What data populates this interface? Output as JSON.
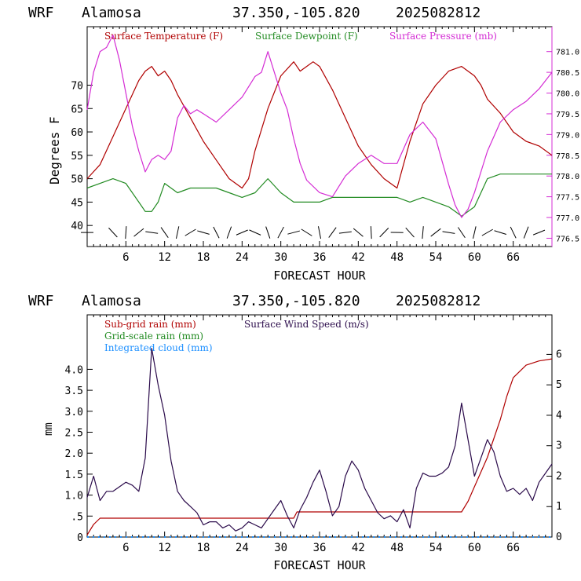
{
  "top": {
    "header": {
      "model": "WRF",
      "station": "Alamosa",
      "coords": "37.350,-105.820",
      "run": "2025082812"
    },
    "legend": [
      {
        "text": "Surface Temperature (F)",
        "color": "#b00000"
      },
      {
        "text": "Surface Dewpoint (F)",
        "color": "#228b22"
      },
      {
        "text": "Surface Pressure (mb)",
        "color": "#d42cd4"
      }
    ],
    "ylabel": "Degrees F",
    "xlabel": "FORECAST HOUR"
  },
  "bottom": {
    "header": {
      "model": "WRF",
      "station": "Alamosa",
      "coords": "37.350,-105.820",
      "run": "2025082812"
    },
    "legend": [
      {
        "text": "Sub-grid rain (mm)",
        "color": "#b00000"
      },
      {
        "text": "Grid-scale rain (mm)",
        "color": "#228b22"
      },
      {
        "text": "Integrated cloud (mm)",
        "color": "#1e90ff"
      },
      {
        "text": "Surface Wind Speed (m/s)",
        "color": "#2a0a4a"
      }
    ],
    "ylabel": "mm",
    "xlabel": "FORECAST HOUR"
  },
  "chart_data": [
    {
      "type": "line",
      "xlim": [
        0,
        72
      ],
      "ylim": [
        35.5,
        82.5
      ],
      "y2lim": [
        776.3,
        781.6
      ],
      "x_ticks": [
        6,
        12,
        18,
        24,
        30,
        36,
        42,
        48,
        54,
        60,
        66
      ],
      "y_ticks": [
        40,
        45,
        50,
        55,
        60,
        65,
        70
      ],
      "y2_ticks": [
        "776.5",
        "777.0",
        "777.5",
        "778.0",
        "778.5",
        "779.0",
        "779.5",
        "780.0",
        "780.5",
        "781.0"
      ],
      "series": [
        {
          "name": "Surface Temperature (F)",
          "color": "#b00000",
          "axis": "left",
          "x": [
            0,
            2,
            4,
            6,
            8,
            9,
            10,
            11,
            12,
            13,
            14,
            16,
            18,
            20,
            22,
            24,
            25,
            26,
            28,
            30,
            32,
            33,
            34,
            35,
            36,
            38,
            40,
            42,
            44,
            46,
            48,
            49,
            50,
            52,
            54,
            56,
            58,
            59,
            60,
            61,
            62,
            64,
            66,
            68,
            70,
            72
          ],
          "y": [
            50,
            53,
            59,
            65,
            71,
            73,
            74,
            72,
            73,
            71,
            68,
            63,
            58,
            54,
            50,
            48,
            50,
            56,
            65,
            72,
            75,
            73,
            74,
            75,
            74,
            69,
            63,
            57,
            53,
            50,
            48,
            53,
            58,
            66,
            70,
            73,
            74,
            73,
            72,
            70,
            67,
            64,
            60,
            58,
            57,
            55
          ]
        },
        {
          "name": "Surface Dewpoint (F)",
          "color": "#228b22",
          "axis": "left",
          "x": [
            0,
            2,
            4,
            6,
            8,
            9,
            10,
            11,
            12,
            14,
            16,
            18,
            20,
            22,
            24,
            26,
            28,
            30,
            32,
            34,
            36,
            38,
            40,
            42,
            44,
            46,
            48,
            50,
            52,
            54,
            56,
            57,
            58,
            60,
            62,
            64,
            66,
            68,
            70,
            72
          ],
          "y": [
            48,
            49,
            50,
            49,
            45,
            43,
            43,
            45,
            49,
            47,
            48,
            48,
            48,
            47,
            46,
            47,
            50,
            47,
            45,
            45,
            45,
            46,
            46,
            46,
            46,
            46,
            46,
            45,
            46,
            45,
            44,
            43,
            42,
            44,
            50,
            51,
            51,
            51,
            51,
            51
          ]
        },
        {
          "name": "Surface Pressure (mb)",
          "color": "#d42cd4",
          "axis": "right",
          "x": [
            0,
            1,
            2,
            3,
            4,
            5,
            6,
            7,
            8,
            9,
            10,
            11,
            12,
            13,
            14,
            15,
            16,
            17,
            18,
            20,
            22,
            24,
            26,
            27,
            28,
            29,
            30,
            31,
            32,
            33,
            34,
            36,
            38,
            40,
            42,
            44,
            46,
            48,
            50,
            52,
            54,
            56,
            57,
            58,
            59,
            60,
            62,
            64,
            66,
            68,
            70,
            72
          ],
          "y": [
            779.6,
            780.5,
            781.0,
            781.1,
            781.4,
            780.8,
            780.0,
            779.2,
            778.6,
            778.1,
            778.4,
            778.5,
            778.4,
            778.6,
            779.4,
            779.7,
            779.5,
            779.6,
            779.5,
            779.3,
            779.6,
            779.9,
            780.4,
            780.5,
            781.0,
            780.5,
            780.0,
            779.6,
            778.9,
            778.3,
            777.9,
            777.6,
            777.5,
            778.0,
            778.3,
            778.5,
            778.3,
            778.3,
            779.0,
            779.3,
            778.9,
            777.8,
            777.3,
            777.0,
            777.2,
            777.6,
            778.6,
            779.3,
            779.6,
            779.8,
            780.1,
            780.5
          ]
        },
        {
          "name": "Wind barbs",
          "color": "#000000",
          "axis": "left",
          "x": [
            0,
            4,
            6,
            8,
            10,
            12,
            14,
            16,
            18,
            20,
            22,
            24,
            26,
            28,
            30,
            32,
            34,
            36,
            38,
            40,
            42,
            44,
            46,
            48,
            50,
            52,
            54,
            56,
            58,
            60,
            62,
            64,
            66,
            68,
            70
          ],
          "y": [
            38.5,
            38.5,
            38.5,
            38.5,
            38.5,
            38.5,
            38.5,
            38.5,
            38.5,
            38.5,
            38.5,
            38.5,
            38.5,
            38.5,
            38.5,
            38.5,
            38.5,
            38.5,
            38.5,
            38.5,
            38.5,
            38.5,
            38.5,
            38.5,
            38.5,
            38.5,
            38.5,
            38.5,
            38.5,
            38.5,
            38.5,
            38.5,
            38.5,
            38.5,
            38.5
          ]
        }
      ]
    },
    {
      "type": "line",
      "xlim": [
        0,
        72
      ],
      "ylim": [
        0,
        5.3
      ],
      "y2lim": [
        0,
        7.3
      ],
      "x_ticks": [
        6,
        12,
        18,
        24,
        30,
        36,
        42,
        48,
        54,
        60,
        66
      ],
      "y_ticks": [
        "0",
        ".5",
        "1.0",
        "1.5",
        "2.0",
        "2.5",
        "3.0",
        "3.5",
        "4.0"
      ],
      "y_tick_values": [
        0,
        0.5,
        1.0,
        1.5,
        2.0,
        2.5,
        3.0,
        3.5,
        4.0
      ],
      "y2_ticks": [
        0,
        1,
        2,
        3,
        4,
        5,
        6
      ],
      "series": [
        {
          "name": "Sub-grid rain (mm)",
          "color": "#b00000",
          "axis": "left",
          "x": [
            0,
            1,
            2,
            32,
            32.5,
            58,
            59,
            60,
            62,
            64,
            65,
            66,
            68,
            70,
            72
          ],
          "y": [
            0.05,
            0.3,
            0.45,
            0.45,
            0.6,
            0.6,
            0.85,
            1.2,
            1.9,
            2.8,
            3.35,
            3.8,
            4.1,
            4.2,
            4.25
          ]
        },
        {
          "name": "Integrated cloud (mm)",
          "color": "#1e90ff",
          "axis": "left",
          "x": [
            0,
            72
          ],
          "y": [
            0.0,
            0.0
          ]
        },
        {
          "name": "Surface Wind Speed (m/s)",
          "color": "#2a0a4a",
          "axis": "right",
          "x": [
            0,
            1,
            2,
            3,
            4,
            6,
            7,
            8,
            9,
            10,
            11,
            12,
            13,
            14,
            15,
            16,
            17,
            18,
            19,
            20,
            21,
            22,
            23,
            24,
            25,
            26,
            27,
            28,
            29,
            30,
            31,
            32,
            33,
            34,
            35,
            36,
            37,
            38,
            39,
            40,
            41,
            42,
            43,
            44,
            45,
            46,
            47,
            48,
            49,
            50,
            51,
            52,
            53,
            54,
            55,
            56,
            57,
            58,
            59,
            60,
            61,
            62,
            63,
            64,
            65,
            66,
            67,
            68,
            69,
            70,
            71,
            72
          ],
          "y": [
            1.3,
            2.0,
            1.2,
            1.5,
            1.5,
            1.8,
            1.7,
            1.5,
            2.6,
            6.2,
            5.0,
            4.0,
            2.5,
            1.5,
            1.2,
            1.0,
            0.8,
            0.4,
            0.5,
            0.5,
            0.3,
            0.4,
            0.2,
            0.3,
            0.5,
            0.4,
            0.3,
            0.6,
            0.9,
            1.2,
            0.7,
            0.3,
            0.9,
            1.3,
            1.8,
            2.2,
            1.5,
            0.7,
            1.0,
            2.0,
            2.5,
            2.2,
            1.6,
            1.2,
            0.8,
            0.6,
            0.7,
            0.5,
            0.9,
            0.3,
            1.6,
            2.1,
            2.0,
            2.0,
            2.1,
            2.3,
            3.0,
            4.4,
            3.2,
            2.0,
            2.6,
            3.2,
            2.8,
            2.0,
            1.5,
            1.6,
            1.4,
            1.6,
            1.2,
            1.8,
            2.1,
            2.4
          ]
        }
      ]
    }
  ]
}
